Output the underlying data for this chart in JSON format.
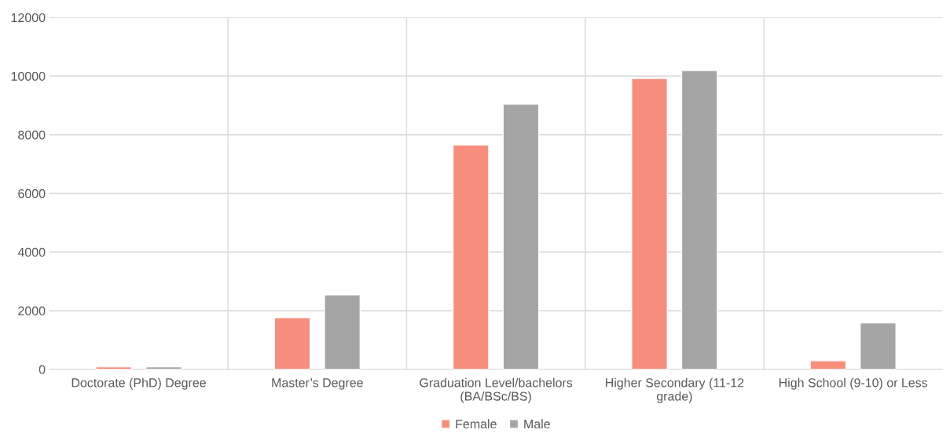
{
  "chart_data": {
    "type": "bar",
    "categories": [
      "Doctorate (PhD) Degree",
      "Master’s Degree",
      "Graduation Level/bachelors\n(BA/BSc/BS)",
      "Higher Secondary (11-12\ngrade)",
      "High School (9-10) or Less"
    ],
    "series": [
      {
        "name": "Female",
        "color": "#f78d7c",
        "values": [
          80,
          1760,
          7650,
          9920,
          290
        ]
      },
      {
        "name": "Male",
        "color": "#a5a5a5",
        "values": [
          80,
          2540,
          9040,
          10190,
          1580
        ]
      }
    ],
    "ylim": [
      0,
      12000
    ],
    "yticks": [
      0,
      2000,
      4000,
      6000,
      8000,
      10000,
      12000
    ],
    "grid": true,
    "legend": "bottom"
  }
}
